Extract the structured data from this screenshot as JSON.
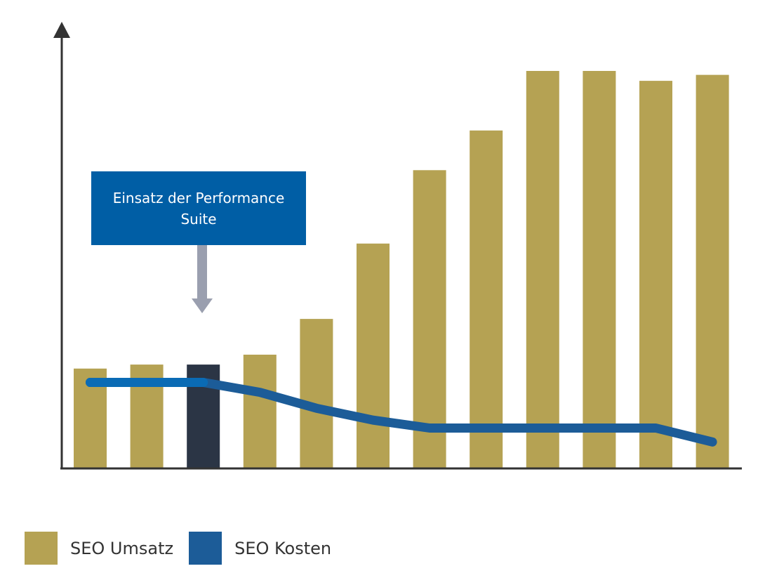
{
  "chart_data": {
    "type": "bar",
    "title": "",
    "xlabel": "",
    "ylabel": "",
    "ylim": [
      0,
      100
    ],
    "categories": [
      "",
      "",
      "",
      "",
      "",
      "",
      "",
      "",
      "",
      "",
      "",
      ""
    ],
    "series": [
      {
        "name": "SEO Umsatz",
        "type": "bar",
        "values": [
          25,
          26,
          26,
          28.5,
          37.5,
          56.5,
          75,
          85,
          100,
          100,
          97.5,
          99
        ],
        "highlight_index": 2
      },
      {
        "name": "SEO Kosten",
        "type": "line",
        "values": [
          21.5,
          21.5,
          21.5,
          19,
          15,
          12,
          10,
          10,
          10,
          10,
          10,
          6.5
        ]
      }
    ],
    "grid": false,
    "legend_position": "bottom-left",
    "annotation": {
      "text": "Einsatz der Performance Suite",
      "target_index": 2
    }
  },
  "colors": {
    "bar": "#B5A253",
    "bar_highlight": "#2B3545",
    "line": "#1C5C98",
    "line_segment_highlight": "#0A6BB5",
    "callout_bg": "#005EA5",
    "callout_arrow": "#9A9FAF",
    "axis": "#333333",
    "legend_umsatz": "#B5A253",
    "legend_kosten": "#1C5C98"
  },
  "legend": {
    "items": [
      {
        "label": "SEO Umsatz"
      },
      {
        "label": "SEO Kosten"
      }
    ]
  }
}
